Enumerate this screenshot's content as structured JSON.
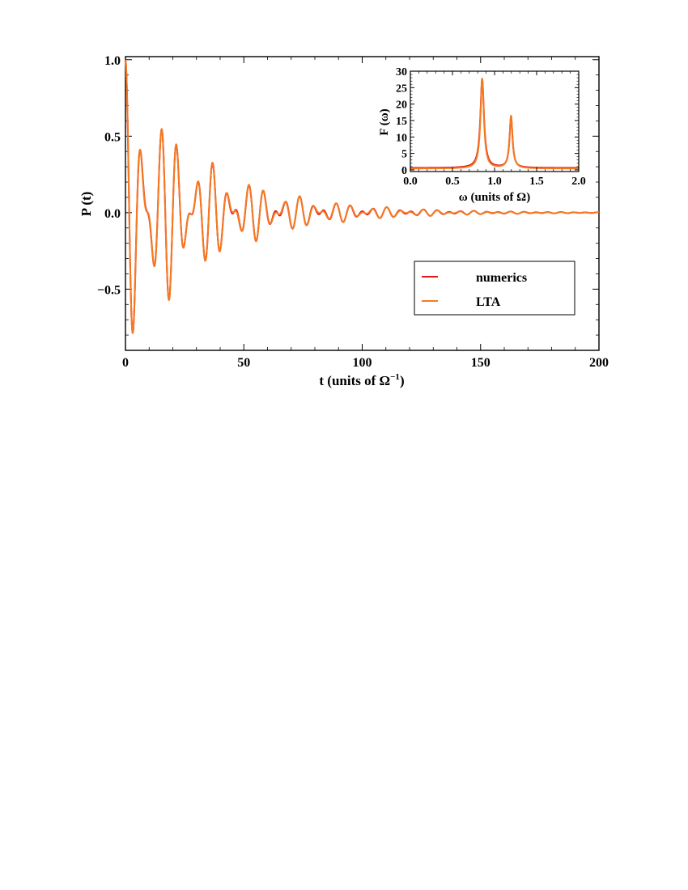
{
  "chart_data": [
    {
      "type": "line",
      "xlabel": "t (units of Ω",
      "xlabel_sup": "−1",
      "xlabel_close": ")",
      "ylabel": "P (t)",
      "xlim": [
        0,
        200
      ],
      "ylim": [
        -0.9,
        1.02
      ],
      "xticks": [
        0,
        50,
        100,
        150,
        200
      ],
      "xtick_labels": [
        "0",
        "50",
        "100",
        "150",
        "200"
      ],
      "yticks": [
        -0.5,
        0.0,
        0.5,
        1.0
      ],
      "ytick_labels": [
        "−0.5",
        "0.0",
        "0.5",
        "1.0"
      ],
      "legend_position": "lower-right",
      "series": [
        {
          "name": "numerics",
          "color": "#e3141e",
          "model": {
            "components": [
              {
                "amp": 0.62,
                "freq": 0.853,
                "decay": 0.034,
                "phase": 0.0
              },
              {
                "amp": 0.38,
                "freq": 1.196,
                "decay": 0.026,
                "phase": 0.0
              }
            ]
          }
        },
        {
          "name": "LTA",
          "color": "#f47a22",
          "model": {
            "components": [
              {
                "amp": 0.6,
                "freq": 0.853,
                "decay": 0.032,
                "phase": 0.0
              },
              {
                "amp": 0.4,
                "freq": 1.196,
                "decay": 0.028,
                "phase": 0.0
              }
            ]
          }
        }
      ]
    },
    {
      "type": "line",
      "inset": true,
      "xlabel": "ω (units of Ω)",
      "ylabel": "F (ω)",
      "xlim": [
        0,
        2
      ],
      "ylim": [
        -0.5,
        30
      ],
      "xticks": [
        0,
        0.5,
        1.0,
        1.5,
        2.0
      ],
      "xtick_labels": [
        "0.0",
        "0.5",
        "1.0",
        "1.5",
        "2.0"
      ],
      "yticks": [
        0,
        5,
        10,
        15,
        20,
        25,
        30
      ],
      "ytick_labels": [
        "0",
        "5",
        "10",
        "15",
        "20",
        "25",
        "30"
      ],
      "series": [
        {
          "name": "numerics",
          "color": "#e3141e",
          "peaks": [
            {
              "center": 0.853,
              "height": 27.0,
              "width": 0.026
            },
            {
              "center": 1.196,
              "height": 15.5,
              "width": 0.021
            }
          ],
          "baseline": 0.6
        },
        {
          "name": "LTA",
          "color": "#f47a22",
          "peaks": [
            {
              "center": 0.853,
              "height": 27.3,
              "width": 0.024
            },
            {
              "center": 1.196,
              "height": 16.0,
              "width": 0.022
            }
          ],
          "baseline": 0.4
        }
      ]
    }
  ]
}
